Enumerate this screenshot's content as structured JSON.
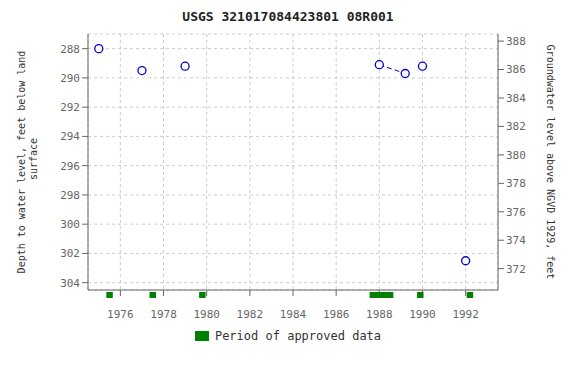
{
  "chart_data": {
    "type": "scatter",
    "title": "USGS 321017084423801 08R001",
    "y_label": "Depth to water level, feet below land\n surface",
    "y2_label": "Groundwater level above NGVD 1929, feet",
    "x": [
      1975.0,
      1977.0,
      1979.0,
      1988.0,
      1989.2,
      1990.0,
      1992.0
    ],
    "values": [
      288.0,
      289.5,
      289.2,
      289.1,
      289.7,
      289.2,
      302.5
    ],
    "color": "#0000cc",
    "marker": "open_circle",
    "connected_segments": [
      [
        3,
        4
      ]
    ],
    "line_style": "dashed",
    "xlim": [
      1974.5,
      1993.5
    ],
    "ylim": [
      304.5,
      287.0
    ],
    "y2lim": [
      370.5,
      388.5
    ],
    "xticks": [
      1976,
      1978,
      1980,
      1982,
      1984,
      1986,
      1988,
      1990,
      1992
    ],
    "yticks": [
      288,
      290,
      292,
      294,
      296,
      298,
      300,
      302,
      304
    ],
    "y2ticks": [
      388,
      386,
      384,
      382,
      380,
      378,
      376,
      374,
      372
    ],
    "grid": true,
    "legend": "bottom",
    "approved_periods": {
      "name": "Period of approved data",
      "color": "#008000",
      "x": [
        1975.5,
        1977.5,
        1979.8,
        1988.1,
        1989.9,
        1992.2
      ],
      "widths": [
        0.3,
        0.3,
        0.3,
        1.1,
        0.3,
        0.3
      ]
    }
  }
}
